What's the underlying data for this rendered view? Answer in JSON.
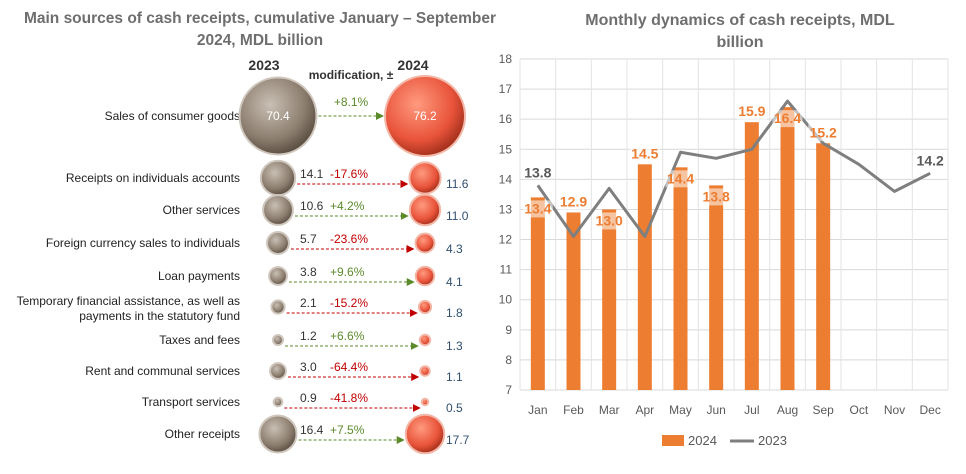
{
  "left_title": "Main sources of cash receipts, cumulative January – September 2024,  MDL billion",
  "right_title": "Monthly dynamics of cash receipts, MDL billion",
  "colors": {
    "bar_2024": "#ED7D31",
    "line_2023": "#7F7F7F",
    "bubble_2023": "#8B7D6E",
    "bubble_2024": "#E8533A",
    "positive": "#5A8A2A",
    "negative": "#C00000",
    "value_2024_text": "#2F4F6F"
  },
  "chart_data": [
    {
      "type": "bubble-comparison",
      "title": "Main sources of cash receipts, cumulative January – September 2024,  MDL billion",
      "column_headers": {
        "y2023": "2023",
        "modification": "modification, ±",
        "y2024": "2024"
      },
      "rows": [
        {
          "label": "Sales of consumer goods",
          "v2023": "70.4",
          "change": "+8.1%",
          "v2024": "76.2"
        },
        {
          "label": "Receipts on individuals accounts",
          "v2023": "14.1",
          "change": "-17.6%",
          "v2024": "11.6"
        },
        {
          "label": "Other services",
          "v2023": "10.6",
          "change": "+4.2%",
          "v2024": "11.0"
        },
        {
          "label": "Foreign currency sales to individuals",
          "v2023": "5.7",
          "change": "-23.6%",
          "v2024": "4.3"
        },
        {
          "label": "Loan payments",
          "v2023": "3.8",
          "change": "+9.6%",
          "v2024": "4.1"
        },
        {
          "label": "Temporary financial assistance, as well as payments in the statutory fund",
          "v2023": "2.1",
          "change": "-15.2%",
          "v2024": "1.8"
        },
        {
          "label": "Taxes and fees",
          "v2023": "1.2",
          "change": "+6.6%",
          "v2024": "1.3"
        },
        {
          "label": "Rent and communal services",
          "v2023": "3.0",
          "change": "-64.4%",
          "v2024": "1.1"
        },
        {
          "label": "Transport services",
          "v2023": "0.9",
          "change": "-41.8%",
          "v2024": "0.5"
        },
        {
          "label": "Other receipts",
          "v2023": "16.4",
          "change": "+7.5%",
          "v2024": "17.7"
        }
      ]
    },
    {
      "type": "bar+line",
      "title": "Monthly dynamics of cash receipts, MDL billion",
      "categories": [
        "Jan",
        "Feb",
        "Mar",
        "Apr",
        "May",
        "Jun",
        "Jul",
        "Aug",
        "Sep",
        "Oct",
        "Nov",
        "Dec"
      ],
      "y_ticks": [
        "7",
        "8",
        "9",
        "10",
        "11",
        "12",
        "13",
        "14",
        "15",
        "16",
        "17",
        "18"
      ],
      "ylim": [
        7,
        18
      ],
      "grid": true,
      "legend_position": "bottom",
      "series": [
        {
          "name": "2024",
          "type": "bar",
          "values": [
            13.4,
            12.9,
            13.0,
            14.5,
            14.4,
            13.8,
            15.9,
            16.4,
            15.2,
            null,
            null,
            null
          ],
          "labels": [
            "13.4",
            "12.9",
            "13.0",
            "14.5",
            "14.4",
            "13.8",
            "15.9",
            "16.4",
            "15.2",
            "",
            "",
            ""
          ]
        },
        {
          "name": "2023",
          "type": "line",
          "values": [
            13.8,
            12.1,
            13.7,
            12.1,
            14.9,
            14.7,
            15.0,
            16.6,
            15.2,
            14.5,
            13.6,
            14.2
          ],
          "labels": [
            "13.8",
            "",
            "",
            "",
            "",
            "",
            "",
            "",
            "",
            "",
            "",
            "14.2"
          ]
        }
      ]
    }
  ]
}
